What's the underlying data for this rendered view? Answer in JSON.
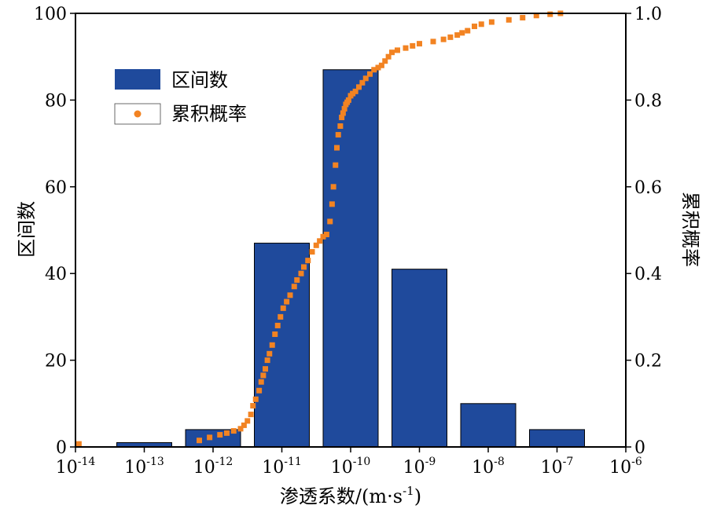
{
  "chart_data": {
    "type": "bar",
    "xlabel": "渗透系数/(m·s",
    "xlabel_sup": "-1",
    "xlabel_end": ")",
    "ylabel_left": "区间数",
    "ylabel_right": "累积概率",
    "x_tick_base": "10",
    "x_tick_exponents": [
      "-14",
      "-13",
      "-12",
      "-11",
      "-10",
      "-9",
      "-8",
      "-7",
      "-6"
    ],
    "x_log_range": [
      -14,
      -6
    ],
    "y_left_ticks": [
      "0",
      "20",
      "40",
      "60",
      "80",
      "100"
    ],
    "y_left_lim": [
      0,
      100
    ],
    "y_right_ticks": [
      "0",
      "0.2",
      "0.4",
      "0.6",
      "0.8",
      "1.0"
    ],
    "y_right_lim": [
      0,
      1.0
    ],
    "legend_position": "upper-left",
    "bar_color": "#1f4a9c",
    "point_color": "#f28322",
    "bars": {
      "name": "区间数",
      "bin_centers_log": [
        -13,
        -12,
        -11,
        -10,
        -9,
        -8,
        -7
      ],
      "values": [
        1,
        4,
        47,
        87,
        41,
        10,
        4
      ]
    },
    "cumulative": {
      "name": "累积概率",
      "log_k": [
        -13.95,
        -12.2,
        -12.05,
        -11.9,
        -11.8,
        -11.7,
        -11.6,
        -11.55,
        -11.5,
        -11.45,
        -11.42,
        -11.38,
        -11.33,
        -11.3,
        -11.27,
        -11.24,
        -11.21,
        -11.18,
        -11.14,
        -11.1,
        -11.06,
        -11.02,
        -10.98,
        -10.93,
        -10.88,
        -10.82,
        -10.78,
        -10.72,
        -10.68,
        -10.62,
        -10.56,
        -10.5,
        -10.45,
        -10.4,
        -10.35,
        -10.3,
        -10.27,
        -10.25,
        -10.22,
        -10.2,
        -10.18,
        -10.15,
        -10.13,
        -10.11,
        -10.09,
        -10.07,
        -10.05,
        -10.03,
        -10.0,
        -9.97,
        -9.93,
        -9.88,
        -9.83,
        -9.78,
        -9.72,
        -9.66,
        -9.6,
        -9.55,
        -9.5,
        -9.45,
        -9.4,
        -9.32,
        -9.2,
        -9.1,
        -9.0,
        -8.8,
        -8.65,
        -8.55,
        -8.45,
        -8.38,
        -8.3,
        -8.2,
        -8.1,
        -7.95,
        -7.7,
        -7.5,
        -7.3,
        -7.1,
        -6.95
      ],
      "prob": [
        0.007,
        0.015,
        0.022,
        0.028,
        0.032,
        0.037,
        0.042,
        0.05,
        0.06,
        0.075,
        0.095,
        0.11,
        0.13,
        0.15,
        0.165,
        0.18,
        0.2,
        0.215,
        0.235,
        0.26,
        0.28,
        0.3,
        0.32,
        0.335,
        0.35,
        0.37,
        0.385,
        0.4,
        0.415,
        0.43,
        0.45,
        0.465,
        0.475,
        0.485,
        0.49,
        0.52,
        0.56,
        0.6,
        0.65,
        0.69,
        0.72,
        0.74,
        0.76,
        0.77,
        0.78,
        0.79,
        0.795,
        0.8,
        0.81,
        0.815,
        0.82,
        0.83,
        0.84,
        0.85,
        0.86,
        0.87,
        0.875,
        0.88,
        0.89,
        0.9,
        0.91,
        0.915,
        0.92,
        0.925,
        0.93,
        0.935,
        0.94,
        0.945,
        0.95,
        0.955,
        0.96,
        0.97,
        0.975,
        0.98,
        0.985,
        0.99,
        0.995,
        0.998,
        1.0
      ]
    }
  }
}
